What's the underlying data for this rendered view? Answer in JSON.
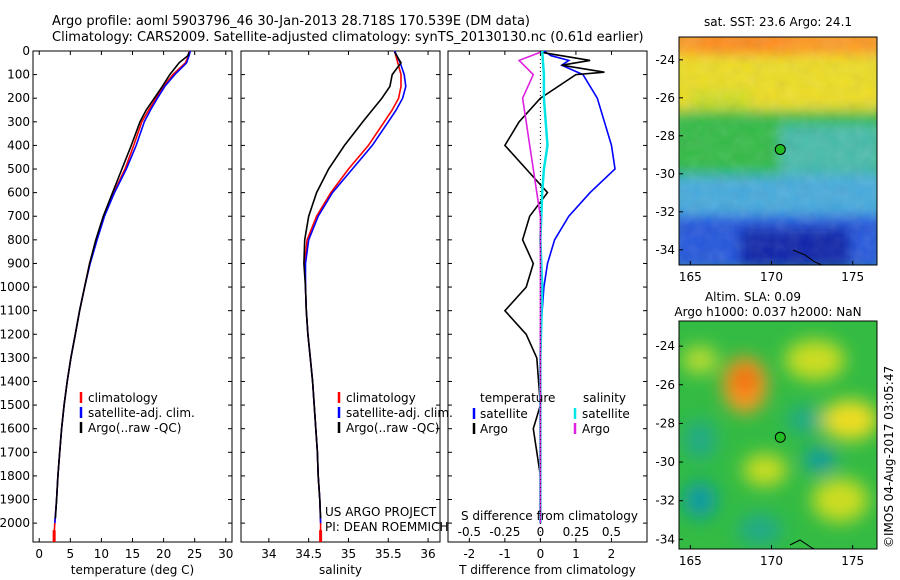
{
  "header": {
    "line1": "Argo profile: aoml 5903796_46 30-Jan-2013 28.718S 170.539E (DM data)",
    "line2": "Climatology: CARS2009. Satellite-adjusted climatology: synTS_20130130.nc (0.61d earlier)"
  },
  "credit": "©IMOS 04-Aug-2017 03:05:47",
  "project": {
    "line1": "US ARGO PROJECT",
    "line2": "PI: DEAN ROEMMICH"
  },
  "colors": {
    "climatology": "#ff0000",
    "satellite": "#0000ff",
    "argo": "#000000",
    "sat_salinity": "#00e5e5",
    "argo_salinity": "#e020e0"
  },
  "chart_data": [
    {
      "type": "line",
      "id": "temperature",
      "xlabel": "temperature (deg C)",
      "xlim": [
        -1,
        31
      ],
      "ylim": [
        2080,
        0
      ],
      "xticks": [
        0,
        5,
        10,
        15,
        20,
        25,
        30
      ],
      "yticks": [
        0,
        100,
        200,
        300,
        400,
        500,
        600,
        700,
        800,
        900,
        1000,
        1100,
        1200,
        1300,
        1400,
        1500,
        1600,
        1700,
        1800,
        1900,
        2000
      ],
      "legend": [
        "climatology",
        "satellite-adj. clim.",
        "Argo(..raw -QC)"
      ],
      "series": [
        {
          "name": "climatology",
          "color": "#ff0000",
          "points": [
            [
              24.2,
              0
            ],
            [
              24.0,
              20
            ],
            [
              23.5,
              50
            ],
            [
              21.5,
              100
            ],
            [
              20.0,
              150
            ],
            [
              18.8,
              200
            ],
            [
              17.6,
              250
            ],
            [
              16.5,
              300
            ],
            [
              15.2,
              400
            ],
            [
              13.8,
              500
            ],
            [
              12.0,
              600
            ],
            [
              10.4,
              700
            ],
            [
              9.2,
              800
            ],
            [
              8.1,
              900
            ],
            [
              7.3,
              1000
            ],
            [
              6.5,
              1100
            ],
            [
              5.8,
              1200
            ],
            [
              5.1,
              1300
            ],
            [
              4.5,
              1400
            ],
            [
              4.0,
              1500
            ],
            [
              3.6,
              1600
            ],
            [
              3.3,
              1700
            ],
            [
              3.0,
              1800
            ],
            [
              2.8,
              1900
            ],
            [
              2.5,
              2000
            ],
            [
              2.4,
              2050
            ]
          ]
        },
        {
          "name": "satellite-adj. clim.",
          "color": "#0000ff",
          "points": [
            [
              24.3,
              0
            ],
            [
              24.1,
              20
            ],
            [
              23.7,
              50
            ],
            [
              21.8,
              100
            ],
            [
              20.2,
              150
            ],
            [
              19.0,
              200
            ],
            [
              17.9,
              250
            ],
            [
              16.9,
              300
            ],
            [
              15.6,
              400
            ],
            [
              14.0,
              500
            ],
            [
              12.1,
              600
            ],
            [
              10.5,
              700
            ],
            [
              9.3,
              800
            ],
            [
              8.2,
              900
            ],
            [
              7.3,
              1000
            ],
            [
              6.5,
              1100
            ],
            [
              5.8,
              1200
            ],
            [
              5.1,
              1300
            ],
            [
              4.5,
              1400
            ],
            [
              4.0,
              1500
            ],
            [
              3.6,
              1600
            ],
            [
              3.3,
              1700
            ],
            [
              3.0,
              1800
            ],
            [
              2.8,
              1900
            ],
            [
              2.5,
              2000
            ]
          ]
        },
        {
          "name": "Argo(..raw -QC)",
          "color": "#000000",
          "points": [
            [
              24.1,
              5
            ],
            [
              23.9,
              20
            ],
            [
              22.5,
              50
            ],
            [
              21.0,
              100
            ],
            [
              19.8,
              150
            ],
            [
              18.5,
              200
            ],
            [
              17.2,
              250
            ],
            [
              16.2,
              300
            ],
            [
              14.8,
              400
            ],
            [
              13.3,
              500
            ],
            [
              11.8,
              600
            ],
            [
              10.3,
              700
            ],
            [
              9.1,
              800
            ],
            [
              8.1,
              900
            ],
            [
              7.3,
              1000
            ],
            [
              6.5,
              1100
            ],
            [
              5.8,
              1200
            ],
            [
              5.1,
              1300
            ],
            [
              4.5,
              1400
            ],
            [
              4.0,
              1500
            ],
            [
              3.6,
              1600
            ],
            [
              3.3,
              1700
            ],
            [
              3.0,
              1800
            ],
            [
              2.8,
              1900
            ],
            [
              2.6,
              1980
            ]
          ]
        }
      ]
    },
    {
      "type": "line",
      "id": "salinity",
      "xlabel": "salinity",
      "xlim": [
        33.65,
        36.15
      ],
      "ylim": [
        2080,
        0
      ],
      "xticks": [
        34,
        34.5,
        35,
        35.5,
        36
      ],
      "legend": [
        "climatology",
        "satellite-adj. clim.",
        "Argo(..raw -QC)"
      ],
      "series": [
        {
          "name": "climatology",
          "color": "#ff0000",
          "points": [
            [
              35.58,
              0
            ],
            [
              35.62,
              50
            ],
            [
              35.66,
              100
            ],
            [
              35.66,
              150
            ],
            [
              35.63,
              200
            ],
            [
              35.55,
              250
            ],
            [
              35.45,
              300
            ],
            [
              35.25,
              400
            ],
            [
              35.0,
              500
            ],
            [
              34.78,
              600
            ],
            [
              34.6,
              700
            ],
            [
              34.48,
              800
            ],
            [
              34.45,
              900
            ],
            [
              34.46,
              1000
            ],
            [
              34.47,
              1100
            ],
            [
              34.49,
              1200
            ],
            [
              34.52,
              1300
            ],
            [
              34.55,
              1400
            ],
            [
              34.57,
              1500
            ],
            [
              34.59,
              1600
            ],
            [
              34.61,
              1700
            ],
            [
              34.62,
              1800
            ],
            [
              34.64,
              1900
            ],
            [
              34.65,
              2000
            ],
            [
              34.65,
              2050
            ]
          ]
        },
        {
          "name": "satellite-adj. clim.",
          "color": "#0000ff",
          "points": [
            [
              35.58,
              0
            ],
            [
              35.65,
              50
            ],
            [
              35.7,
              100
            ],
            [
              35.72,
              150
            ],
            [
              35.68,
              200
            ],
            [
              35.6,
              250
            ],
            [
              35.5,
              300
            ],
            [
              35.3,
              400
            ],
            [
              35.05,
              500
            ],
            [
              34.8,
              600
            ],
            [
              34.62,
              700
            ],
            [
              34.5,
              800
            ],
            [
              34.46,
              900
            ],
            [
              34.46,
              1000
            ],
            [
              34.47,
              1100
            ],
            [
              34.49,
              1200
            ],
            [
              34.52,
              1300
            ],
            [
              34.55,
              1400
            ],
            [
              34.57,
              1500
            ],
            [
              34.59,
              1600
            ],
            [
              34.61,
              1700
            ],
            [
              34.62,
              1800
            ],
            [
              34.64,
              1900
            ],
            [
              34.65,
              2000
            ]
          ]
        },
        {
          "name": "Argo(..raw -QC)",
          "color": "#000000",
          "points": [
            [
              35.58,
              5
            ],
            [
              35.66,
              50
            ],
            [
              35.55,
              100
            ],
            [
              35.52,
              150
            ],
            [
              35.42,
              200
            ],
            [
              35.3,
              250
            ],
            [
              35.18,
              300
            ],
            [
              34.95,
              400
            ],
            [
              34.75,
              500
            ],
            [
              34.6,
              600
            ],
            [
              34.5,
              700
            ],
            [
              34.45,
              800
            ],
            [
              34.44,
              900
            ],
            [
              34.46,
              1000
            ],
            [
              34.47,
              1100
            ],
            [
              34.49,
              1200
            ],
            [
              34.52,
              1300
            ],
            [
              34.55,
              1400
            ],
            [
              34.57,
              1500
            ],
            [
              34.59,
              1600
            ],
            [
              34.61,
              1700
            ],
            [
              34.62,
              1800
            ],
            [
              34.64,
              1900
            ],
            [
              34.65,
              1980
            ]
          ]
        }
      ]
    },
    {
      "type": "line",
      "id": "difference",
      "xlabel": "T difference from climatology",
      "top_label": "S difference from climatology",
      "xlim": [
        -2.6,
        3.0
      ],
      "ylim": [
        2080,
        0
      ],
      "xticks": [
        -2,
        -1,
        0,
        1,
        2
      ],
      "xticks_top": [
        -0.5,
        -0.25,
        0,
        0.25,
        0.5
      ],
      "legend_t": {
        "title": "temperature",
        "items": [
          "satellite",
          "Argo"
        ]
      },
      "legend_s": {
        "title": "salinity",
        "items": [
          "satellite",
          "Argo"
        ]
      },
      "series": [
        {
          "name": "satellite",
          "group": "temperature",
          "color": "#0000ff",
          "points": [
            [
              0.1,
              0
            ],
            [
              0.3,
              20
            ],
            [
              0.8,
              40
            ],
            [
              0.6,
              60
            ],
            [
              1.2,
              100
            ],
            [
              1.6,
              200
            ],
            [
              1.8,
              300
            ],
            [
              2.0,
              400
            ],
            [
              2.1,
              500
            ],
            [
              1.4,
              600
            ],
            [
              0.8,
              700
            ],
            [
              0.4,
              800
            ],
            [
              0.2,
              900
            ],
            [
              0.1,
              1000
            ],
            [
              0.0,
              1200
            ],
            [
              0.0,
              1600
            ],
            [
              0.0,
              2000
            ]
          ]
        },
        {
          "name": "Argo",
          "group": "temperature",
          "color": "#000000",
          "points": [
            [
              0.0,
              5
            ],
            [
              1.4,
              40
            ],
            [
              0.6,
              60
            ],
            [
              1.8,
              90
            ],
            [
              1.0,
              100
            ],
            [
              0.0,
              200
            ],
            [
              -0.6,
              300
            ],
            [
              -1.0,
              400
            ],
            [
              -0.4,
              500
            ],
            [
              0.2,
              600
            ],
            [
              -0.3,
              700
            ],
            [
              -0.5,
              800
            ],
            [
              -0.2,
              900
            ],
            [
              -0.4,
              1000
            ],
            [
              -1.0,
              1100
            ],
            [
              -0.4,
              1200
            ],
            [
              -0.1,
              1300
            ],
            [
              0.0,
              1500
            ],
            [
              -0.2,
              1600
            ],
            [
              0.0,
              1800
            ],
            [
              0.0,
              2000
            ]
          ]
        },
        {
          "name": "satellite",
          "group": "salinity",
          "color": "#00e5e5",
          "points": [
            [
              0.05,
              0
            ],
            [
              0.1,
              100
            ],
            [
              0.1,
              200
            ],
            [
              0.15,
              300
            ],
            [
              0.2,
              400
            ],
            [
              0.1,
              500
            ],
            [
              0.05,
              600
            ],
            [
              0.0,
              800
            ],
            [
              0.05,
              1000
            ],
            [
              0.0,
              1300
            ],
            [
              0.0,
              2000
            ]
          ]
        },
        {
          "name": "Argo",
          "group": "salinity",
          "color": "#e020e0",
          "points": [
            [
              0.0,
              5
            ],
            [
              -0.6,
              40
            ],
            [
              -0.2,
              100
            ],
            [
              -0.5,
              200
            ],
            [
              -0.4,
              300
            ],
            [
              -0.3,
              400
            ],
            [
              -0.2,
              500
            ],
            [
              -0.1,
              600
            ],
            [
              0.0,
              700
            ],
            [
              0.0,
              900
            ],
            [
              0.0,
              1100
            ],
            [
              0.0,
              2000
            ]
          ]
        }
      ]
    },
    {
      "type": "heatmap",
      "id": "sst-map",
      "title": "sat. SST: 23.6  Argo: 24.1",
      "xlim": [
        164.3,
        176.5
      ],
      "ylim": [
        -34.8,
        -22.8
      ],
      "xticks": [
        165,
        170,
        175
      ],
      "yticks": [
        -24,
        -26,
        -28,
        -30,
        -32,
        -34
      ],
      "marker": {
        "lon": 170.539,
        "lat": -28.718
      }
    },
    {
      "type": "heatmap",
      "id": "sla-map",
      "title_line1": "Altim. SLA: 0.09",
      "title_line2": "Argo h1000: 0.037 h2000: NaN",
      "xlim": [
        164.3,
        176.5
      ],
      "ylim": [
        -34.5,
        -22.7
      ],
      "xticks": [
        165,
        170,
        175
      ],
      "yticks": [
        -24,
        -26,
        -28,
        -30,
        -32,
        -34
      ],
      "marker": {
        "lon": 170.539,
        "lat": -28.718
      }
    }
  ]
}
